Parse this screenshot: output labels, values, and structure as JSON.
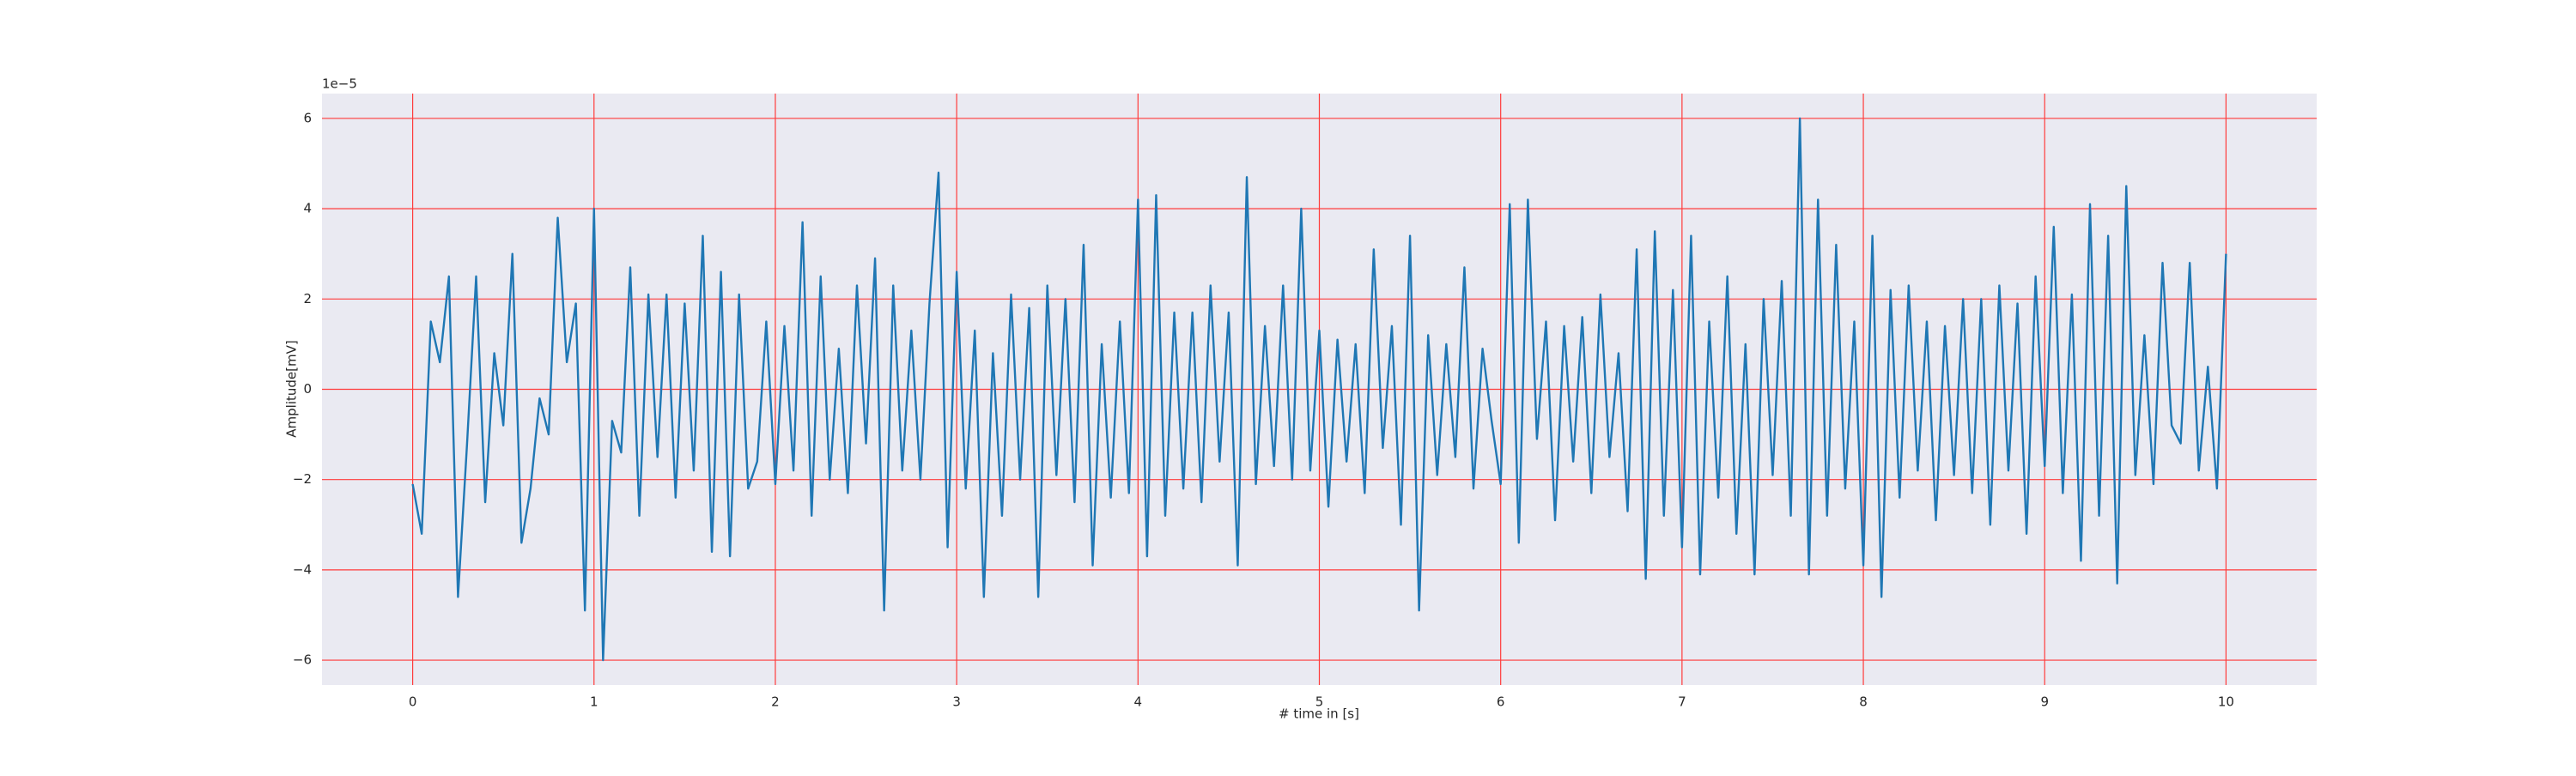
{
  "chart_data": {
    "type": "line",
    "xlabel": "# time in [s]",
    "ylabel": "Amplitude[mV]",
    "y_offset_label": "1e−5",
    "color": "#1f77b4",
    "background": "#eaeaf2",
    "grid": true,
    "grid_color": "#ff3b3b",
    "xlim": [
      -0.5,
      10.5
    ],
    "ylim": [
      -6.55,
      6.55
    ],
    "xticks": [
      0,
      1,
      2,
      3,
      4,
      5,
      6,
      7,
      8,
      9,
      10
    ],
    "yticks": [
      {
        "value": -6,
        "label": "−6"
      },
      {
        "value": -4,
        "label": "−4"
      },
      {
        "value": -2,
        "label": "−2"
      },
      0,
      2,
      4,
      6
    ],
    "x": [
      0,
      0.05,
      0.1,
      0.15,
      0.2,
      0.25,
      0.3,
      0.35,
      0.4,
      0.45,
      0.5,
      0.55,
      0.6,
      0.65,
      0.7,
      0.75,
      0.8,
      0.85,
      0.9,
      0.95,
      1,
      1.05,
      1.1,
      1.15,
      1.2,
      1.25,
      1.3,
      1.35,
      1.4,
      1.45,
      1.5,
      1.55,
      1.6,
      1.65,
      1.7,
      1.75,
      1.8,
      1.85,
      1.9,
      1.95,
      2,
      2.05,
      2.1,
      2.15,
      2.2,
      2.25,
      2.3,
      2.35,
      2.4,
      2.45,
      2.5,
      2.55,
      2.6,
      2.65,
      2.7,
      2.75,
      2.8,
      2.85,
      2.9,
      2.95,
      3,
      3.05,
      3.1,
      3.15,
      3.2,
      3.25,
      3.3,
      3.35,
      3.4,
      3.45,
      3.5,
      3.55,
      3.6,
      3.65,
      3.7,
      3.75,
      3.8,
      3.85,
      3.9,
      3.95,
      4,
      4.05,
      4.1,
      4.15,
      4.2,
      4.25,
      4.3,
      4.35,
      4.4,
      4.45,
      4.5,
      4.55,
      4.6,
      4.65,
      4.7,
      4.75,
      4.8,
      4.85,
      4.9,
      4.95,
      5,
      5.05,
      5.1,
      5.15,
      5.2,
      5.25,
      5.3,
      5.35,
      5.4,
      5.45,
      5.5,
      5.55,
      5.6,
      5.65,
      5.7,
      5.75,
      5.8,
      5.85,
      5.9,
      5.95,
      6,
      6.05,
      6.1,
      6.15,
      6.2,
      6.25,
      6.3,
      6.35,
      6.4,
      6.45,
      6.5,
      6.55,
      6.6,
      6.65,
      6.7,
      6.75,
      6.8,
      6.85,
      6.9,
      6.95,
      7,
      7.05,
      7.1,
      7.15,
      7.2,
      7.25,
      7.3,
      7.35,
      7.4,
      7.45,
      7.5,
      7.55,
      7.6,
      7.65,
      7.7,
      7.75,
      7.8,
      7.85,
      7.9,
      7.95,
      8,
      8.05,
      8.1,
      8.15,
      8.2,
      8.25,
      8.3,
      8.35,
      8.4,
      8.45,
      8.5,
      8.55,
      8.6,
      8.65,
      8.7,
      8.75,
      8.8,
      8.85,
      8.9,
      8.95,
      9,
      9.05,
      9.1,
      9.15,
      9.2,
      9.25,
      9.3,
      9.35,
      9.4,
      9.45,
      9.5,
      9.55,
      9.6,
      9.65,
      9.7,
      9.75,
      9.8,
      9.85,
      9.9,
      9.95,
      10
    ],
    "values": [
      -2.1,
      -3.2,
      1.5,
      0.6,
      2.5,
      -4.6,
      -1.2,
      2.5,
      -2.5,
      0.8,
      -0.8,
      3.0,
      -3.4,
      -2.2,
      -0.2,
      -1.0,
      3.8,
      0.6,
      1.9,
      -4.9,
      4.0,
      -6.0,
      -0.7,
      -1.4,
      2.7,
      -2.8,
      2.1,
      -1.5,
      2.1,
      -2.4,
      1.9,
      -1.8,
      3.4,
      -3.6,
      2.6,
      -3.7,
      2.1,
      -2.2,
      -1.6,
      1.5,
      -2.1,
      1.4,
      -1.8,
      3.7,
      -2.8,
      2.5,
      -2.0,
      0.9,
      -2.3,
      2.3,
      -1.2,
      2.9,
      -4.9,
      2.3,
      -1.8,
      1.3,
      -2.0,
      1.9,
      4.8,
      -3.5,
      2.6,
      -2.2,
      1.3,
      -4.6,
      0.8,
      -2.8,
      2.1,
      -2.0,
      1.8,
      -4.6,
      2.3,
      -1.9,
      2.0,
      -2.5,
      3.2,
      -3.9,
      1.0,
      -2.4,
      1.5,
      -2.3,
      4.2,
      -3.7,
      4.3,
      -2.8,
      1.7,
      -2.2,
      1.7,
      -2.5,
      2.3,
      -1.6,
      1.7,
      -3.9,
      4.7,
      -2.1,
      1.4,
      -1.7,
      2.3,
      -2.0,
      4.0,
      -1.8,
      1.3,
      -2.6,
      1.1,
      -1.6,
      1.0,
      -2.3,
      3.1,
      -1.3,
      1.4,
      -3.0,
      3.4,
      -4.9,
      1.2,
      -1.9,
      1.0,
      -1.5,
      2.7,
      -2.2,
      0.9,
      -0.7,
      -2.1,
      4.1,
      -3.4,
      4.2,
      -1.1,
      1.5,
      -2.9,
      1.4,
      -1.6,
      1.6,
      -2.3,
      2.1,
      -1.5,
      0.8,
      -2.7,
      3.1,
      -4.2,
      3.5,
      -2.8,
      2.2,
      -3.5,
      3.4,
      -4.1,
      1.5,
      -2.4,
      2.5,
      -3.2,
      1.0,
      -4.1,
      2.0,
      -1.9,
      2.4,
      -2.8,
      6.0,
      -4.1,
      4.2,
      -2.8,
      3.2,
      -2.2,
      1.5,
      -3.9,
      3.4,
      -4.6,
      2.2,
      -2.4,
      2.3,
      -1.8,
      1.5,
      -2.9,
      1.4,
      -1.9,
      2.0,
      -2.3,
      2.0,
      -3.0,
      2.3,
      -1.8,
      1.9,
      -3.2,
      2.5,
      -1.7,
      3.6,
      -2.3,
      2.1,
      -3.8,
      4.1,
      -2.8,
      3.4,
      -4.3,
      4.5,
      -1.9,
      1.2,
      -2.1,
      2.8,
      -0.8,
      -1.2,
      2.8,
      -1.8,
      0.5,
      -2.2,
      3.0
    ]
  }
}
